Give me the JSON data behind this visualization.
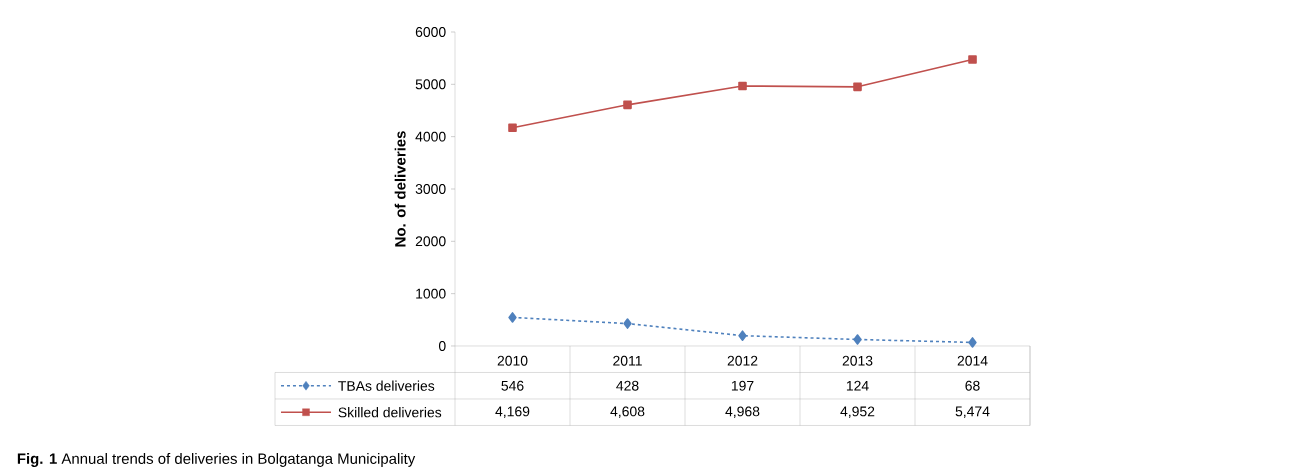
{
  "chart_data": {
    "type": "line",
    "ylabel": "No. of deliveries",
    "categories": [
      "2010",
      "2011",
      "2012",
      "2013",
      "2014"
    ],
    "series": [
      {
        "name": "TBAs deliveries",
        "color": "#4f81bd",
        "marker": "diamond",
        "line_style": "dashed",
        "values": [
          546,
          428,
          197,
          124,
          68
        ],
        "value_labels": [
          "546",
          "428",
          "197",
          "124",
          "68"
        ]
      },
      {
        "name": "Skilled deliveries",
        "color": "#c0504d",
        "marker": "square",
        "line_style": "solid",
        "values": [
          4169,
          4608,
          4968,
          4952,
          5474
        ],
        "value_labels": [
          "4,169",
          "4,608",
          "4,968",
          "4,952",
          "5,474"
        ]
      }
    ],
    "ylim": [
      0,
      6000
    ],
    "yticks": [
      0,
      1000,
      2000,
      3000,
      4000,
      5000,
      6000
    ],
    "grid": false,
    "legend": "bottom",
    "annotations": [
      "**Fig. 1** Annual trends of deliveries in Bolgatanga Municipality"
    ]
  }
}
